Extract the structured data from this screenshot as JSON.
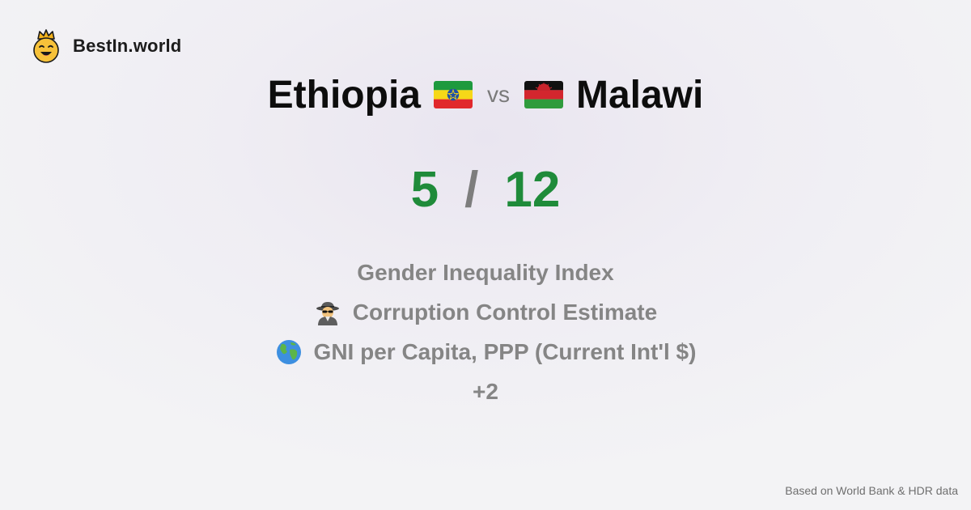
{
  "brand": {
    "name": "BestIn.world",
    "icon": "crowned-smiley-icon"
  },
  "comparison": {
    "left": {
      "country": "Ethiopia",
      "flag_icon": "ethiopia-flag-icon"
    },
    "separator": "vs",
    "right": {
      "country": "Malawi",
      "flag_icon": "malawi-flag-icon"
    }
  },
  "score": {
    "left": "5",
    "separator": "/",
    "right": "12"
  },
  "metrics": [
    {
      "label": "Gender Inequality Index",
      "icon": ""
    },
    {
      "label": "Corruption Control Estimate",
      "icon": "detective-icon"
    },
    {
      "label": "GNI per Capita, PPP (Current Int'l $)",
      "icon": "globe-icon"
    },
    {
      "label": "+2",
      "icon": ""
    }
  ],
  "footer": {
    "source": "Based on World Bank & HDR data"
  },
  "colors": {
    "score_green": "#1f8b3a",
    "muted_gray": "#858585",
    "text_dark": "#0d0d0d"
  }
}
